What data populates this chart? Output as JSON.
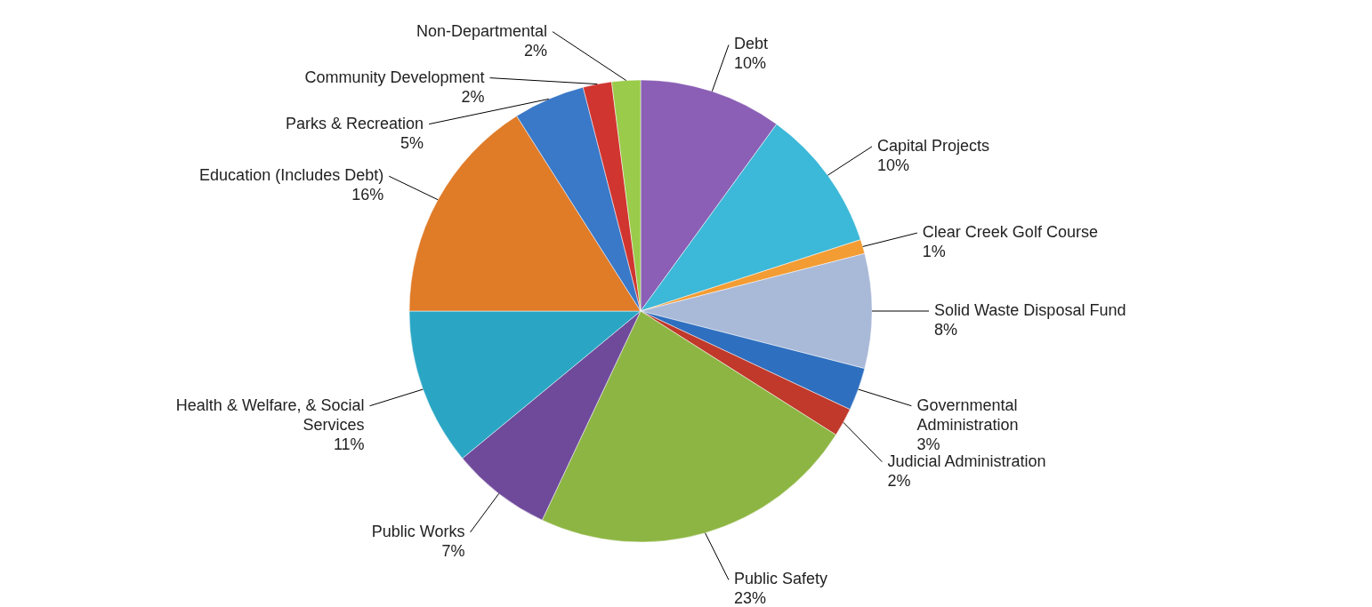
{
  "chart_data": {
    "type": "pie",
    "categories": [
      "Debt",
      "Capital Projects",
      "Clear Creek Golf Course",
      "Solid Waste Disposal Fund",
      "Governmental Administration",
      "Judicial Administration",
      "Public Safety",
      "Public Works",
      "Health & Welfare, & Social Services",
      "Education (Includes Debt)",
      "Parks & Recreation",
      "Community Development",
      "Non-Departmental"
    ],
    "values": [
      10,
      10,
      1,
      8,
      3,
      2,
      23,
      7,
      11,
      16,
      5,
      2,
      2
    ],
    "value_labels": [
      "10%",
      "10%",
      "1%",
      "8%",
      "3%",
      "2%",
      "23%",
      "7%",
      "11%",
      "16%",
      "5%",
      "2%",
      "2%"
    ],
    "colors": [
      "#8a5fb5",
      "#3cb8d8",
      "#f39c33",
      "#a9b9d8",
      "#2e6fbf",
      "#c0392b",
      "#8db543",
      "#6f4a9b",
      "#2aa6c4",
      "#e07b28",
      "#3a78c8",
      "#d0352f",
      "#9acb4a"
    ]
  }
}
